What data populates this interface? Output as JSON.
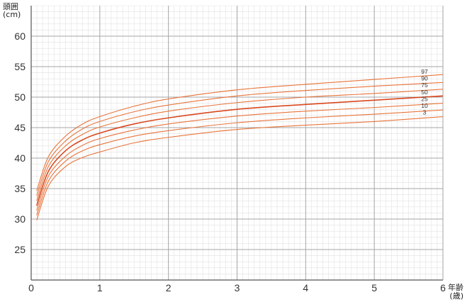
{
  "chart_data": {
    "type": "line",
    "ylabel_title": "頭囲",
    "ylabel_unit": "(cm)",
    "xlabel_title": "年齢",
    "xlabel_unit": "(歳)",
    "xlim": [
      0,
      6
    ],
    "ylim": [
      20,
      65
    ],
    "xticks": [
      0,
      1,
      2,
      3,
      4,
      5,
      6
    ],
    "yticks": [
      25,
      30,
      35,
      40,
      45,
      50,
      55,
      60
    ],
    "grid": true,
    "colors": {
      "line": "#e8743b",
      "line_median": "#d9481f",
      "grid_minor": "#e2e2e2",
      "grid_major": "#a6a6a6",
      "axis": "#555555"
    },
    "series": [
      {
        "name": "97",
        "x": [
          0.08,
          0.25,
          0.5,
          0.75,
          1,
          1.5,
          2,
          3,
          4,
          5,
          6
        ],
        "values": [
          34.6,
          40.2,
          43.6,
          45.6,
          46.8,
          48.5,
          49.7,
          51.2,
          52.1,
          52.9,
          53.7
        ]
      },
      {
        "name": "90",
        "x": [
          0.08,
          0.25,
          0.5,
          0.75,
          1,
          1.5,
          2,
          3,
          4,
          5,
          6
        ],
        "values": [
          33.8,
          39.4,
          42.8,
          44.8,
          46.0,
          47.6,
          48.7,
          50.2,
          51.1,
          51.8,
          52.4
        ]
      },
      {
        "name": "75",
        "x": [
          0.08,
          0.25,
          0.5,
          0.75,
          1,
          1.5,
          2,
          3,
          4,
          5,
          6
        ],
        "values": [
          33.0,
          38.6,
          42.0,
          43.9,
          45.1,
          46.6,
          47.7,
          49.1,
          50.0,
          50.6,
          51.3
        ]
      },
      {
        "name": "50",
        "x": [
          0.08,
          0.25,
          0.5,
          0.75,
          1,
          1.5,
          2,
          3,
          4,
          5,
          6
        ],
        "values": [
          32.2,
          37.8,
          41.2,
          43.0,
          44.1,
          45.6,
          46.6,
          48.0,
          48.8,
          49.5,
          50.2
        ]
      },
      {
        "name": "25",
        "x": [
          0.08,
          0.25,
          0.5,
          0.75,
          1,
          1.5,
          2,
          3,
          4,
          5,
          6
        ],
        "values": [
          31.4,
          37.0,
          40.3,
          42.1,
          43.2,
          44.6,
          45.6,
          46.9,
          47.7,
          48.3,
          49.0
        ]
      },
      {
        "name": "10",
        "x": [
          0.08,
          0.25,
          0.5,
          0.75,
          1,
          1.5,
          2,
          3,
          4,
          5,
          6
        ],
        "values": [
          30.6,
          36.2,
          39.5,
          41.2,
          42.2,
          43.6,
          44.5,
          45.8,
          46.6,
          47.2,
          47.9
        ]
      },
      {
        "name": "3",
        "x": [
          0.08,
          0.25,
          0.5,
          0.75,
          1,
          1.5,
          2,
          3,
          4,
          5,
          6
        ],
        "values": [
          29.8,
          35.4,
          38.6,
          40.1,
          41.0,
          42.5,
          43.4,
          44.7,
          45.4,
          46.0,
          46.8
        ]
      }
    ]
  }
}
